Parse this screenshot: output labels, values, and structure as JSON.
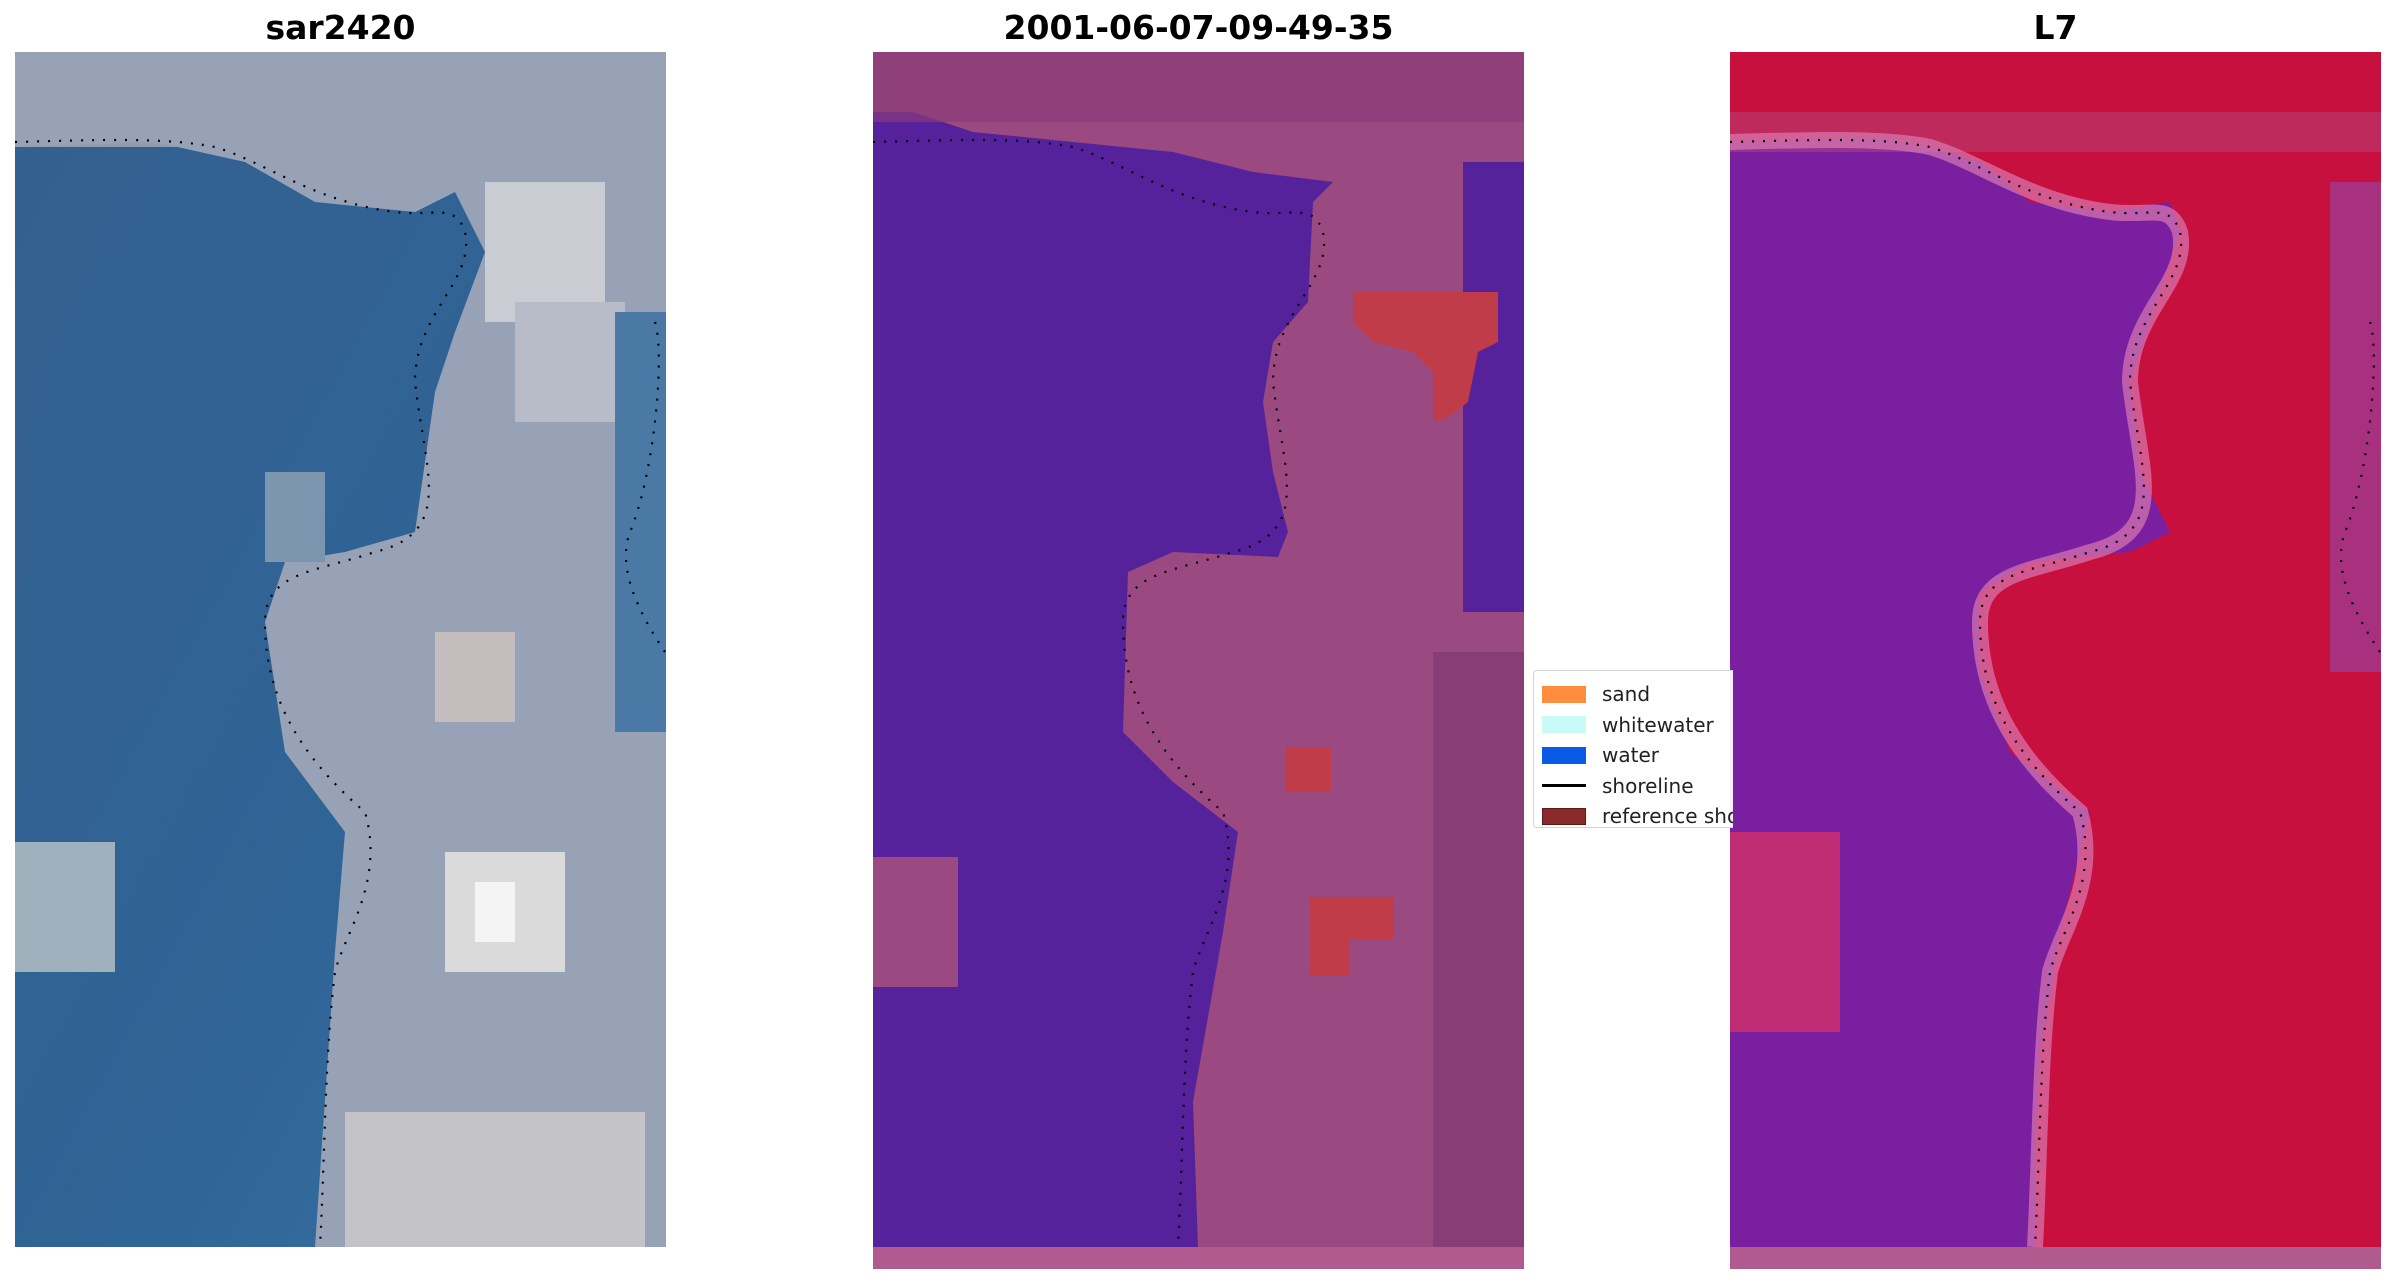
{
  "panels": {
    "left": {
      "title": "sar2420"
    },
    "middle": {
      "title": "2001-06-07-09-49-35"
    },
    "right": {
      "title": "L7"
    }
  },
  "legend": {
    "items": [
      {
        "label": "sand",
        "color": "#ff8c3c",
        "kind": "patch"
      },
      {
        "label": "whitewater",
        "color": "#c8faf8",
        "kind": "patch"
      },
      {
        "label": "water",
        "color": "#0a5ae6",
        "kind": "patch"
      },
      {
        "label": "shoreline",
        "color": "#000000",
        "kind": "line"
      },
      {
        "label": "reference shoreline",
        "color": "#8b2a2a",
        "kind": "patch"
      }
    ]
  },
  "colors": {
    "water_rgb": "#2d5a8c",
    "land_rgb": "#9aa0b0",
    "classified_water": "#55229b",
    "classified_land": "#9a4a80",
    "classified_red": "#c03c48",
    "index_low": "#7a1fa0",
    "index_high": "#c8103e"
  }
}
